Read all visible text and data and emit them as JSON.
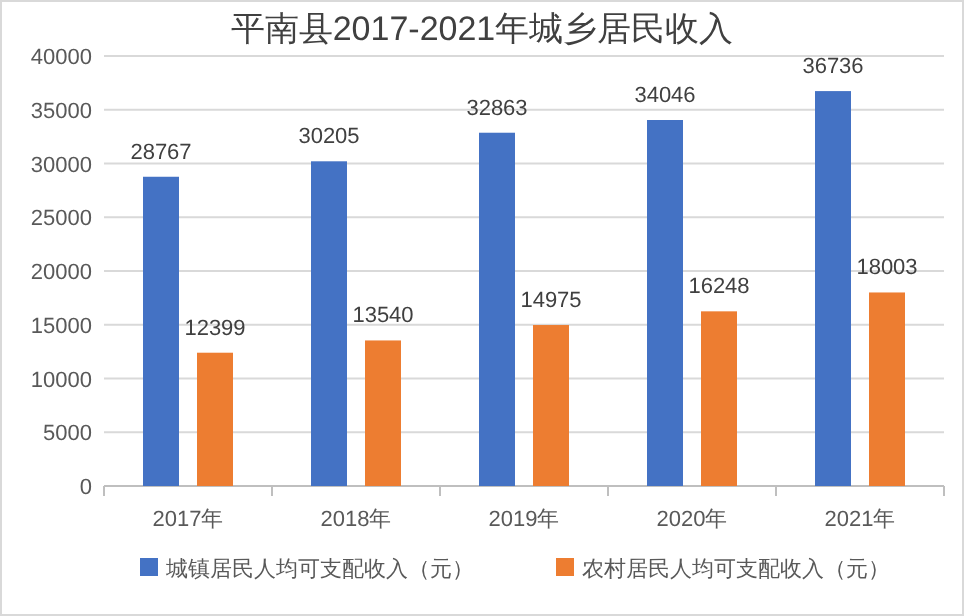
{
  "chart_data": {
    "type": "bar",
    "title": "平南县2017-2021年城乡居民收入",
    "categories": [
      "2017年",
      "2018年",
      "2019年",
      "2020年",
      "2021年"
    ],
    "series": [
      {
        "name": "城镇居民人均可支配收入（元）",
        "color": "#4472c4",
        "values": [
          28767,
          30205,
          32863,
          34046,
          36736
        ]
      },
      {
        "name": "农村居民人均可支配收入（元）",
        "color": "#ed7d31",
        "values": [
          12399,
          13540,
          14975,
          16248,
          18003
        ]
      }
    ],
    "ylim": [
      0,
      40000
    ],
    "yticks": [
      0,
      5000,
      10000,
      15000,
      20000,
      25000,
      30000,
      35000,
      40000
    ],
    "grid": "y",
    "legend": "bottom",
    "data_labels": true
  }
}
